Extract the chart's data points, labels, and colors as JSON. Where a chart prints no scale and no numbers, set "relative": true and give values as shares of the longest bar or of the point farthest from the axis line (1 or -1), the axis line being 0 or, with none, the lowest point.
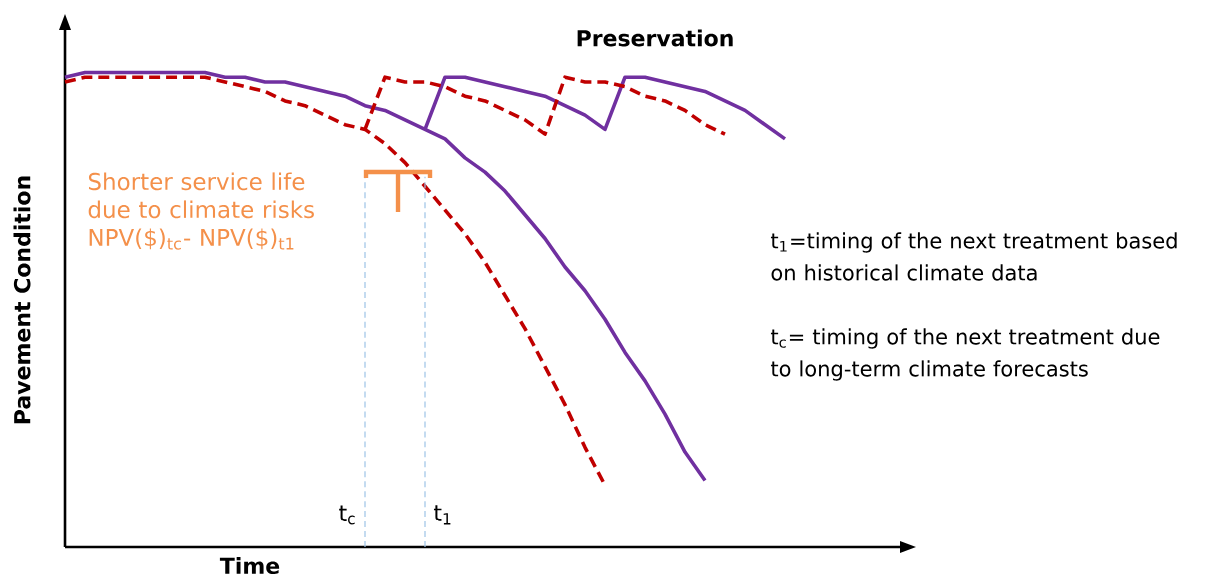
{
  "chart_data": {
    "type": "line",
    "relative": true,
    "xlabel": "Time",
    "ylabel": "Pavement Condition",
    "marker": "none",
    "categories": [
      null,
      null,
      null,
      null,
      null,
      null,
      null,
      null,
      null,
      null,
      null,
      null,
      null,
      null,
      null,
      null,
      null,
      null,
      null,
      null,
      null,
      null,
      null,
      null,
      null,
      null,
      null,
      null,
      null,
      null,
      null,
      null,
      null,
      null,
      null,
      null,
      null
    ],
    "series": [
      {
        "color": "#7030a0",
        "line_style": "solid",
        "values": [
          0.99,
          1.0,
          1.0,
          1.0,
          1.0,
          1.0,
          1.0,
          1.0,
          0.99,
          0.99,
          0.98,
          0.98,
          0.97,
          0.96,
          0.95,
          0.93,
          0.92,
          0.9,
          0.88,
          0.86,
          0.82,
          0.79,
          0.75,
          0.7,
          0.65,
          0.59,
          0.54,
          0.48,
          0.41,
          0.35,
          0.28,
          0.2,
          0.14,
          null,
          null,
          null,
          null
        ]
      },
      {
        "color": "#7030a0",
        "line_style": "solid",
        "values": [
          null,
          null,
          null,
          null,
          null,
          null,
          null,
          null,
          null,
          null,
          null,
          null,
          null,
          null,
          null,
          null,
          null,
          null,
          0.88,
          0.99,
          0.99,
          0.98,
          0.97,
          0.96,
          0.95,
          0.93,
          0.91,
          0.88,
          0.99,
          0.99,
          0.98,
          0.97,
          0.96,
          0.94,
          0.92,
          0.89,
          0.86
        ]
      },
      {
        "color": "#c00000",
        "line_style": "dashed",
        "values": [
          0.98,
          0.99,
          0.99,
          0.99,
          0.99,
          0.99,
          0.99,
          0.99,
          0.98,
          0.97,
          0.96,
          0.94,
          0.93,
          0.91,
          0.89,
          0.88,
          0.85,
          0.81,
          0.76,
          0.71,
          0.66,
          0.6,
          0.53,
          0.46,
          0.38,
          0.3,
          0.21,
          0.13,
          null,
          null,
          null,
          null,
          null,
          null,
          null,
          null,
          null
        ]
      },
      {
        "color": "#c00000",
        "line_style": "dashed",
        "values": [
          null,
          null,
          null,
          null,
          null,
          null,
          null,
          null,
          null,
          null,
          null,
          null,
          null,
          null,
          null,
          0.88,
          0.99,
          0.98,
          0.98,
          0.97,
          0.95,
          0.94,
          0.92,
          0.9,
          0.87,
          0.99,
          0.98,
          0.98,
          0.97,
          0.95,
          0.94,
          0.92,
          0.89,
          0.87,
          null,
          null,
          null
        ]
      }
    ],
    "annotations": [
      "t$_{c}$",
      "t$_{1}$",
      "**Preservation**",
      "Shorter service life due to climate risks NPV($)$_{tc}$- NPV($)$_{t1}$",
      "t$_{1}$=timing of the next treatment based on historical climate data",
      "t$_{c}$= timing of the next treatment due to long-term climate forecasts"
    ]
  }
}
